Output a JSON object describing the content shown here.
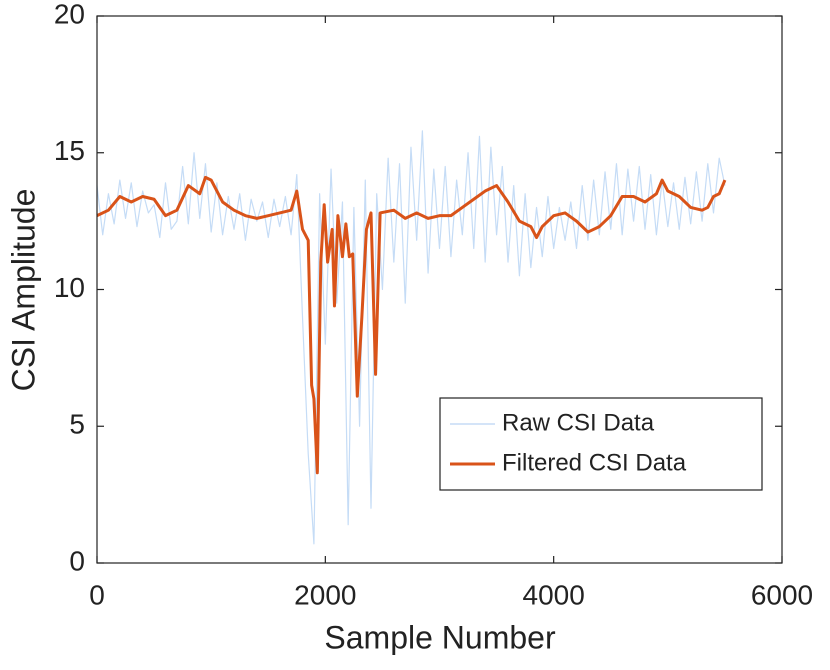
{
  "chart_data": {
    "type": "line",
    "xlabel": "Sample Number",
    "ylabel": "CSI Amplitude",
    "xlim": [
      0,
      6000
    ],
    "ylim": [
      0,
      20
    ],
    "xticks": [
      0,
      2000,
      4000,
      6000
    ],
    "yticks": [
      0,
      5,
      10,
      15,
      20
    ],
    "legend": "southeast",
    "series": [
      {
        "name": "Raw CSI Data",
        "color": "#c5dcf6",
        "x": [
          0,
          50,
          100,
          150,
          200,
          250,
          300,
          350,
          400,
          450,
          500,
          550,
          600,
          650,
          700,
          750,
          800,
          850,
          900,
          950,
          1000,
          1050,
          1100,
          1150,
          1200,
          1250,
          1300,
          1350,
          1400,
          1450,
          1500,
          1550,
          1600,
          1650,
          1700,
          1750,
          1800,
          1850,
          1900,
          1950,
          2000,
          2050,
          2100,
          2150,
          2200,
          2250,
          2300,
          2350,
          2400,
          2450,
          2500,
          2550,
          2600,
          2650,
          2700,
          2750,
          2800,
          2850,
          2900,
          2950,
          3000,
          3050,
          3100,
          3150,
          3200,
          3250,
          3300,
          3350,
          3400,
          3450,
          3500,
          3550,
          3600,
          3650,
          3700,
          3750,
          3800,
          3850,
          3900,
          3950,
          4000,
          4050,
          4100,
          4150,
          4200,
          4250,
          4300,
          4350,
          4400,
          4450,
          4500,
          4550,
          4600,
          4650,
          4700,
          4750,
          4800,
          4850,
          4900,
          4950,
          5000,
          5050,
          5100,
          5150,
          5200,
          5250,
          5300,
          5350,
          5400,
          5450,
          5500
        ],
        "values": [
          13.8,
          12.0,
          13.5,
          12.4,
          14.0,
          12.6,
          13.9,
          12.3,
          13.6,
          12.8,
          13.1,
          11.9,
          13.9,
          12.2,
          12.5,
          14.5,
          12.4,
          15.0,
          12.6,
          14.6,
          12.1,
          13.9,
          12.0,
          13.4,
          12.2,
          13.5,
          11.8,
          13.3,
          12.5,
          13.2,
          11.9,
          13.3,
          12.3,
          13.4,
          12.0,
          14.2,
          9.0,
          4.0,
          0.7,
          13.5,
          8.0,
          14.4,
          9.5,
          13.2,
          1.4,
          13.0,
          5.0,
          14.0,
          2.0,
          13.5,
          10.0,
          14.8,
          11.0,
          14.6,
          9.5,
          15.2,
          11.8,
          15.8,
          10.6,
          14.4,
          11.5,
          14.5,
          11.2,
          14.0,
          12.0,
          15.0,
          11.5,
          15.6,
          11.0,
          15.2,
          12.0,
          14.5,
          11.0,
          13.8,
          10.5,
          13.5,
          10.8,
          13.0,
          11.2,
          13.4,
          11.5,
          13.0,
          11.8,
          13.2,
          11.5,
          13.8,
          11.8,
          14.0,
          12.0,
          14.3,
          12.2,
          14.6,
          12.0,
          14.4,
          12.5,
          14.5,
          12.2,
          14.2,
          12.0,
          14.0,
          12.3,
          13.9,
          12.2,
          14.1,
          12.4,
          14.3,
          12.5,
          14.6,
          12.8,
          14.8,
          13.8
        ]
      },
      {
        "name": "Filtered CSI Data",
        "color": "#d95319",
        "x": [
          0,
          100,
          200,
          300,
          400,
          500,
          600,
          700,
          800,
          900,
          950,
          1000,
          1100,
          1200,
          1300,
          1400,
          1500,
          1600,
          1700,
          1750,
          1800,
          1850,
          1880,
          1900,
          1930,
          1960,
          1990,
          2020,
          2060,
          2080,
          2110,
          2150,
          2180,
          2210,
          2240,
          2280,
          2320,
          2360,
          2400,
          2440,
          2480,
          2600,
          2700,
          2800,
          2900,
          3000,
          3100,
          3200,
          3300,
          3400,
          3500,
          3600,
          3700,
          3800,
          3850,
          3900,
          4000,
          4100,
          4200,
          4300,
          4400,
          4500,
          4600,
          4700,
          4800,
          4900,
          4950,
          5000,
          5100,
          5200,
          5300,
          5350,
          5400,
          5450,
          5500
        ],
        "values": [
          12.7,
          12.9,
          13.4,
          13.2,
          13.4,
          13.3,
          12.7,
          12.9,
          13.8,
          13.5,
          14.1,
          14.0,
          13.2,
          12.9,
          12.7,
          12.6,
          12.7,
          12.8,
          12.9,
          13.6,
          12.2,
          11.8,
          6.5,
          6.0,
          3.3,
          11.0,
          13.1,
          11.0,
          12.2,
          9.4,
          12.7,
          11.2,
          12.4,
          11.2,
          11.3,
          6.1,
          9.0,
          12.2,
          12.8,
          6.9,
          12.8,
          12.9,
          12.6,
          12.8,
          12.6,
          12.7,
          12.7,
          13.0,
          13.3,
          13.6,
          13.8,
          13.2,
          12.5,
          12.3,
          11.9,
          12.3,
          12.7,
          12.8,
          12.5,
          12.1,
          12.3,
          12.7,
          13.4,
          13.4,
          13.2,
          13.5,
          14.0,
          13.6,
          13.4,
          13.0,
          12.9,
          13.0,
          13.4,
          13.5,
          14.0
        ]
      }
    ]
  }
}
